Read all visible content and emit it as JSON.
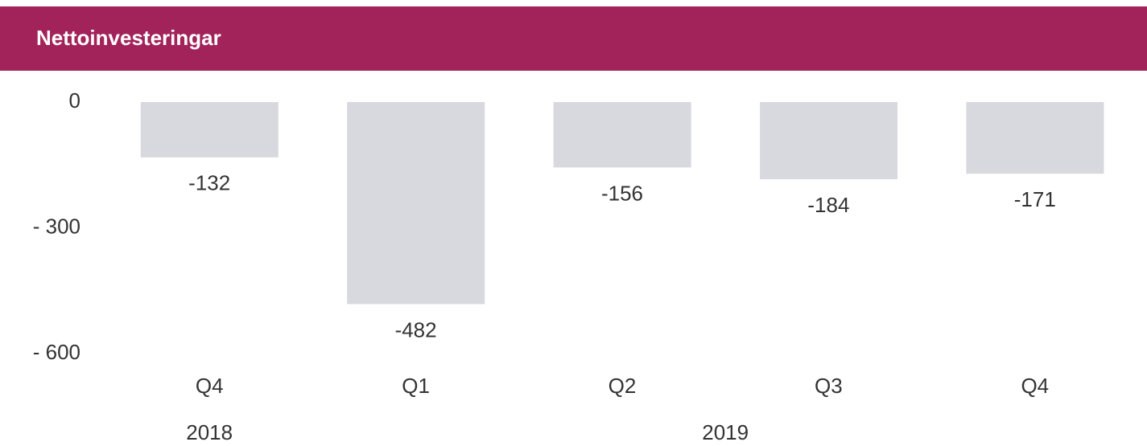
{
  "chart_data": {
    "type": "bar",
    "title": "Nettoinvesteringar",
    "categories": [
      "Q4",
      "Q1",
      "Q2",
      "Q3",
      "Q4"
    ],
    "groups": [
      {
        "label": "2018",
        "span": [
          0,
          0
        ]
      },
      {
        "label": "2019",
        "span": [
          1,
          4
        ]
      }
    ],
    "values": [
      -132,
      -482,
      -156,
      -184,
      -171
    ],
    "color": "#d8d9de",
    "ylim": [
      -600,
      0
    ],
    "yticks": [
      0,
      {
        "value": -300,
        "label": "- 300"
      },
      {
        "value": -600,
        "label": "- 600"
      }
    ],
    "grid": false
  }
}
